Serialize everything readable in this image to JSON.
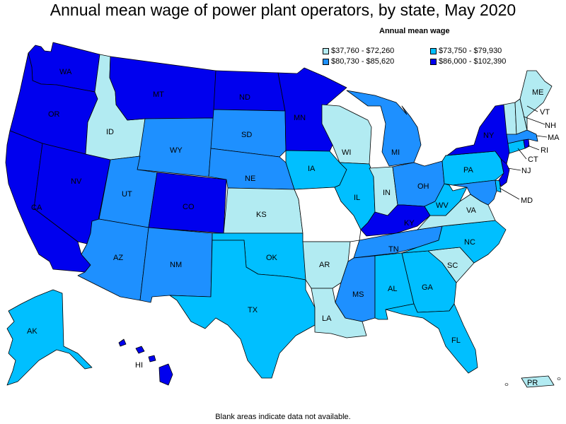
{
  "title": "Annual mean wage of power plant operators, by state, May 2020",
  "legend": {
    "title": "Annual mean wage",
    "ranges": [
      {
        "label": "$37,760 - $72,260",
        "color": "#b2ebf2"
      },
      {
        "label": "$73,750 - $79,930",
        "color": "#00bfff"
      },
      {
        "label": "$80,730 - $85,620",
        "color": "#1e90ff"
      },
      {
        "label": "$86,000 - $102,390",
        "color": "#0000ee"
      }
    ]
  },
  "note": "Blank areas indicate data not available.",
  "colors": {
    "na": "#ffffff"
  },
  "states": {
    "WA": "$86,000 - $102,390",
    "OR": "$86,000 - $102,390",
    "CA": "$86,000 - $102,390",
    "NV": "$86,000 - $102,390",
    "ID": "$37,760 - $72,260",
    "MT": "$86,000 - $102,390",
    "WY": "$80,730 - $85,620",
    "UT": "$80,730 - $85,620",
    "AZ": "$80,730 - $85,620",
    "CO": "$86,000 - $102,390",
    "NM": "$80,730 - $85,620",
    "ND": "$86,000 - $102,390",
    "SD": "$80,730 - $85,620",
    "NE": "$80,730 - $85,620",
    "KS": "$37,760 - $72,260",
    "OK": "$73,750 - $79,930",
    "TX": "$73,750 - $79,930",
    "MN": "$86,000 - $102,390",
    "IA": "$73,750 - $79,930",
    "MO": "",
    "AR": "$37,760 - $72,260",
    "LA": "$37,760 - $72,260",
    "WI": "$37,760 - $72,260",
    "IL": "$73,750 - $79,930",
    "MI": "$80,730 - $85,620",
    "IN": "$37,760 - $72,260",
    "OH": "$80,730 - $85,620",
    "KY": "$86,000 - $102,390",
    "TN": "$80,730 - $85,620",
    "MS": "$80,730 - $85,620",
    "AL": "$73,750 - $79,930",
    "GA": "$73,750 - $79,930",
    "FL": "$73,750 - $79,930",
    "SC": "$37,760 - $72,260",
    "NC": "$73,750 - $79,930",
    "VA": "$37,760 - $72,260",
    "WV": "$73,750 - $79,930",
    "PA": "$73,750 - $79,930",
    "NY": "$86,000 - $102,390",
    "NJ": "$86,000 - $102,390",
    "MD": "$80,730 - $85,620",
    "DE": "$73,750 - $79,930",
    "CT": "$73,750 - $79,930",
    "RI": "$86,000 - $102,390",
    "MA": "$80,730 - $85,620",
    "VT": "$37,760 - $72,260",
    "NH": "$37,760 - $72,260",
    "ME": "$37,760 - $72,260",
    "AK": "$73,750 - $79,930",
    "HI": "$86,000 - $102,390",
    "PR": "$37,760 - $72,260"
  }
}
